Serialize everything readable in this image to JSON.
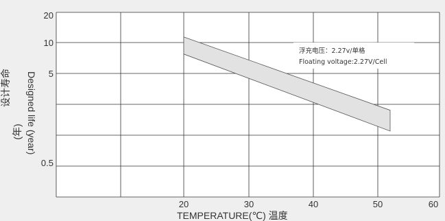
{
  "chart_data": {
    "type": "area",
    "xlabel": "TEMPERATURE(℃)  温度",
    "ylabel": {
      "english": "Designed life (year)",
      "chinese_line1": "设计寿命",
      "chinese_line2": "(年)"
    },
    "x_ticks": [
      "20",
      "30",
      "40",
      "50",
      "60"
    ],
    "y_ticks": [
      "20",
      "10",
      "5",
      "0.5"
    ],
    "xlim": [
      10,
      60
    ],
    "ylim": [
      0.2,
      20
    ],
    "y_scale": "log",
    "grid": true,
    "annotation": {
      "line1": "浮充电压：2.27v/单格",
      "line2": "Floating voltage:2.27V/Cell"
    },
    "band": {
      "x": [
        20,
        52
      ],
      "upper": [
        11.5,
        1.85
      ],
      "lower": [
        7.5,
        1.1
      ]
    },
    "colors": {
      "band_fill": "#e2e2e2",
      "band_stroke": "#555555",
      "grid": "#333333",
      "plot_bg": "#ffffff"
    }
  }
}
